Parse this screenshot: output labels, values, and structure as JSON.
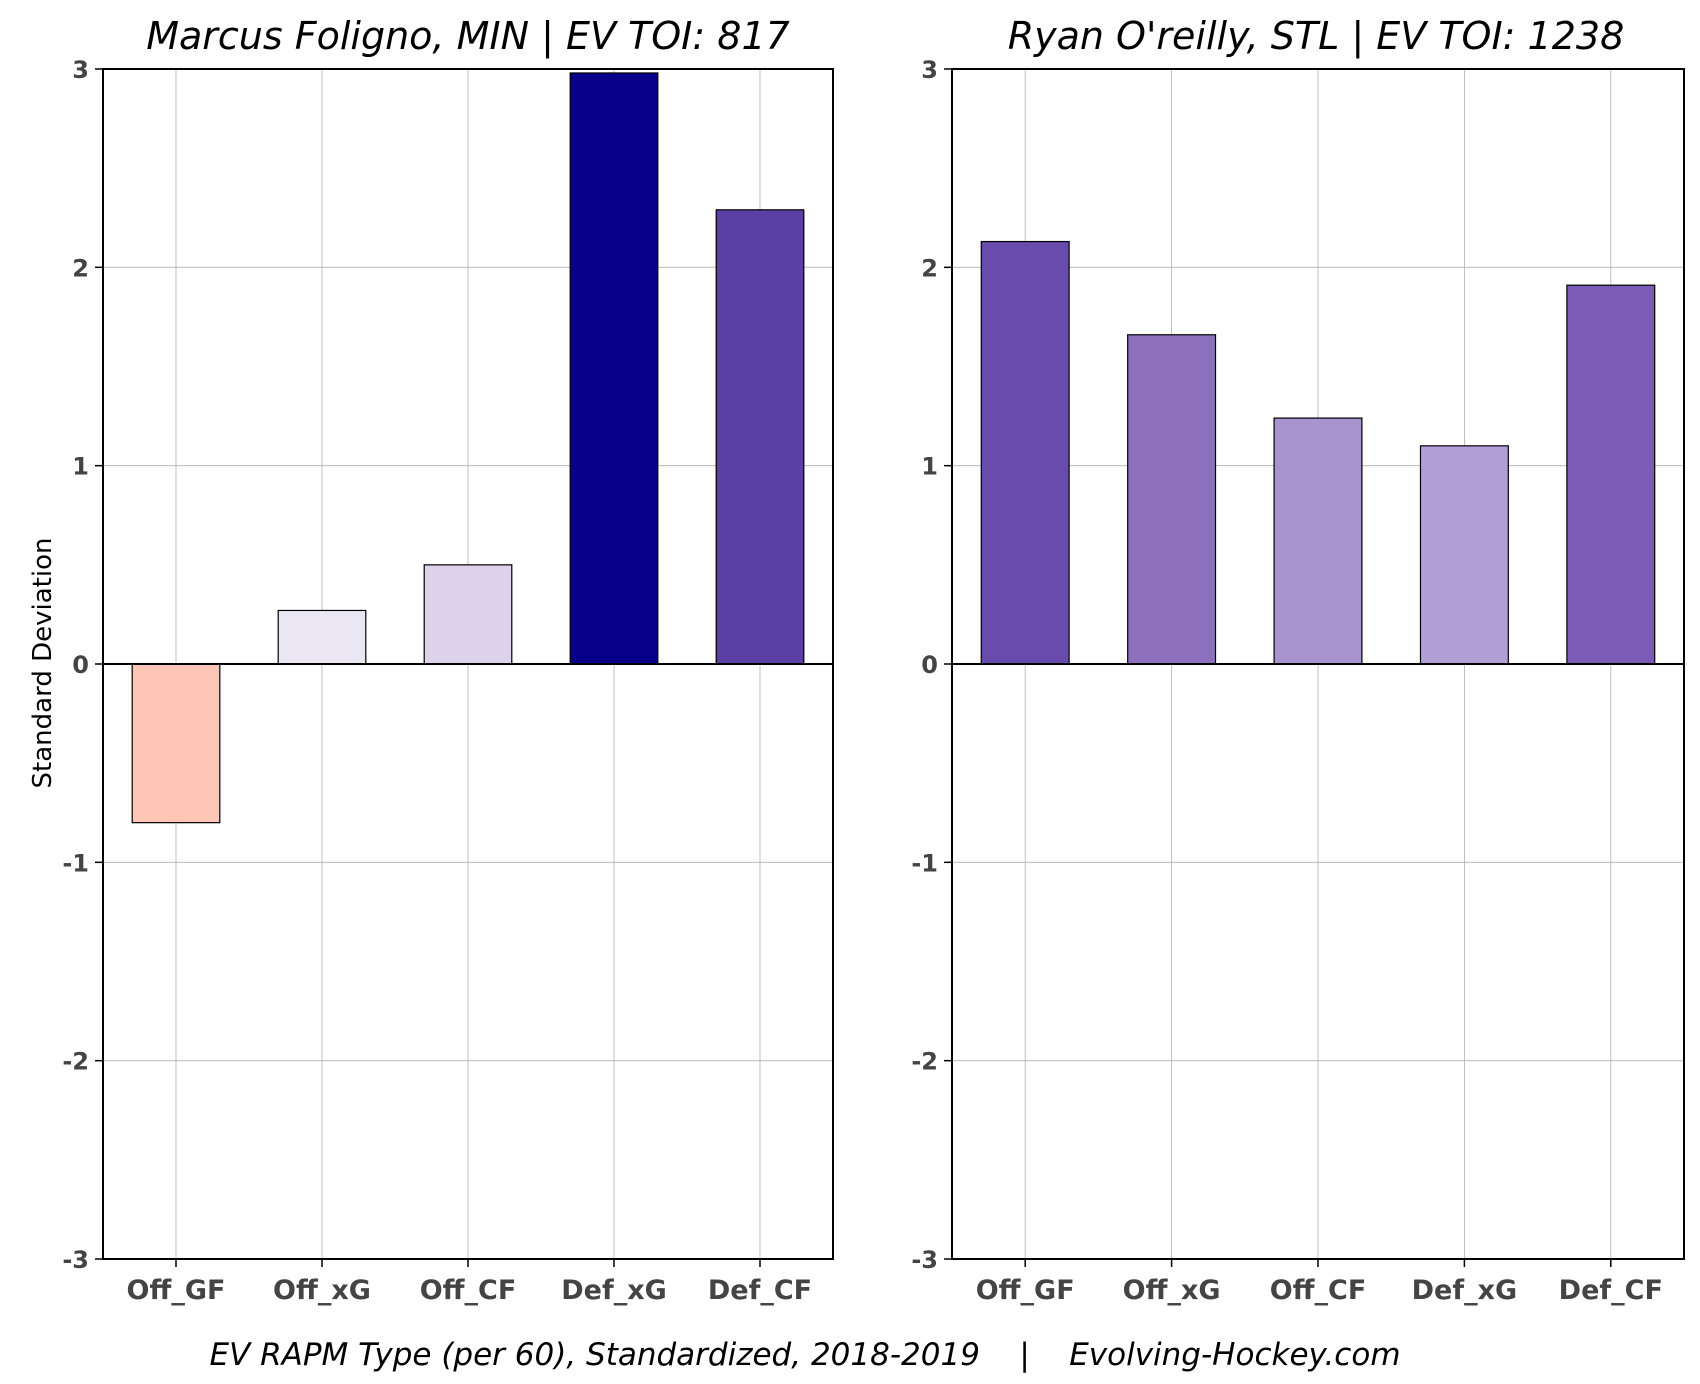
{
  "footer": "EV RAPM Type (per 60), Standardized, 2018-2019    |    Evolving-Hockey.com",
  "ylabel": "Standard Deviation",
  "chart_data": [
    {
      "type": "bar",
      "title": "Marcus Foligno, MIN  |  EV TOI: 817",
      "ylabel": "Standard Deviation",
      "xlabel": "",
      "categories": [
        "Off_GF",
        "Off_xG",
        "Off_CF",
        "Def_xG",
        "Def_CF"
      ],
      "values": [
        -0.8,
        0.27,
        0.5,
        2.98,
        2.29
      ],
      "colors": [
        "#fdc5b5",
        "#ebe6f4",
        "#dcd2ea",
        "#08008a",
        "#5c3fa5"
      ],
      "ylim": [
        -3,
        3
      ],
      "yticks": [
        -3,
        -2,
        -1,
        0,
        1,
        2,
        3
      ],
      "grid": true
    },
    {
      "type": "bar",
      "title": "Ryan O'reilly, STL  |  EV TOI: 1238",
      "ylabel": "",
      "xlabel": "",
      "categories": [
        "Off_GF",
        "Off_xG",
        "Off_CF",
        "Def_xG",
        "Def_CF"
      ],
      "values": [
        2.13,
        1.66,
        1.24,
        1.1,
        1.91
      ],
      "colors": [
        "#684bac",
        "#8d71be",
        "#a893cf",
        "#b29fd5",
        "#7a5bb5"
      ],
      "ylim": [
        -3,
        3
      ],
      "yticks": [
        -3,
        -2,
        -1,
        0,
        1,
        2,
        3
      ],
      "grid": true
    }
  ]
}
